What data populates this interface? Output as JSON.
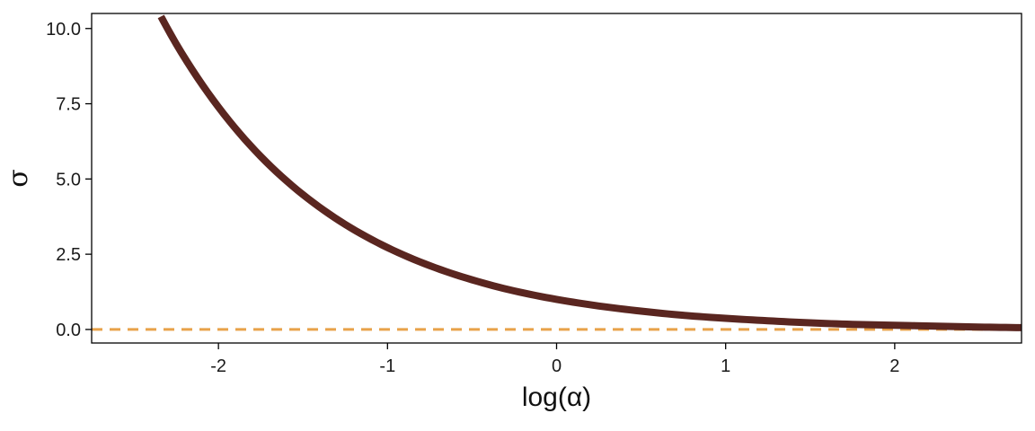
{
  "chart_data": {
    "type": "line",
    "title": "",
    "xlabel": "log(α)",
    "ylabel": "σ",
    "xlim": [
      -2.75,
      2.75
    ],
    "ylim": [
      -0.45,
      10.5
    ],
    "xticks": [
      -2,
      -1,
      0,
      1,
      2
    ],
    "xtick_labels": [
      "-2",
      "-1",
      "0",
      "1",
      "2"
    ],
    "yticks": [
      0,
      2.5,
      5,
      7.5,
      10
    ],
    "ytick_labels": [
      "0.0",
      "2.5",
      "5.0",
      "7.5",
      "10.0"
    ],
    "grid": false,
    "legend": "none",
    "series": [
      {
        "style": "solid",
        "color": "#5a2620",
        "x": [
          -2.34,
          -2.25,
          -2.0,
          -1.75,
          -1.5,
          -1.25,
          -1.0,
          -0.75,
          -0.5,
          -0.25,
          0.0,
          0.25,
          0.5,
          0.75,
          1.0,
          1.25,
          1.5,
          1.75,
          2.0,
          2.25,
          2.5,
          2.75
        ],
        "y": [
          10.4,
          9.49,
          7.39,
          5.75,
          4.48,
          3.49,
          2.72,
          2.12,
          1.65,
          1.28,
          1.0,
          0.78,
          0.61,
          0.47,
          0.37,
          0.29,
          0.22,
          0.17,
          0.14,
          0.11,
          0.08,
          0.06
        ]
      }
    ],
    "reference_lines": [
      {
        "orientation": "horizontal",
        "y": 0,
        "style": "dashed",
        "color": "#e8a24a"
      }
    ]
  }
}
